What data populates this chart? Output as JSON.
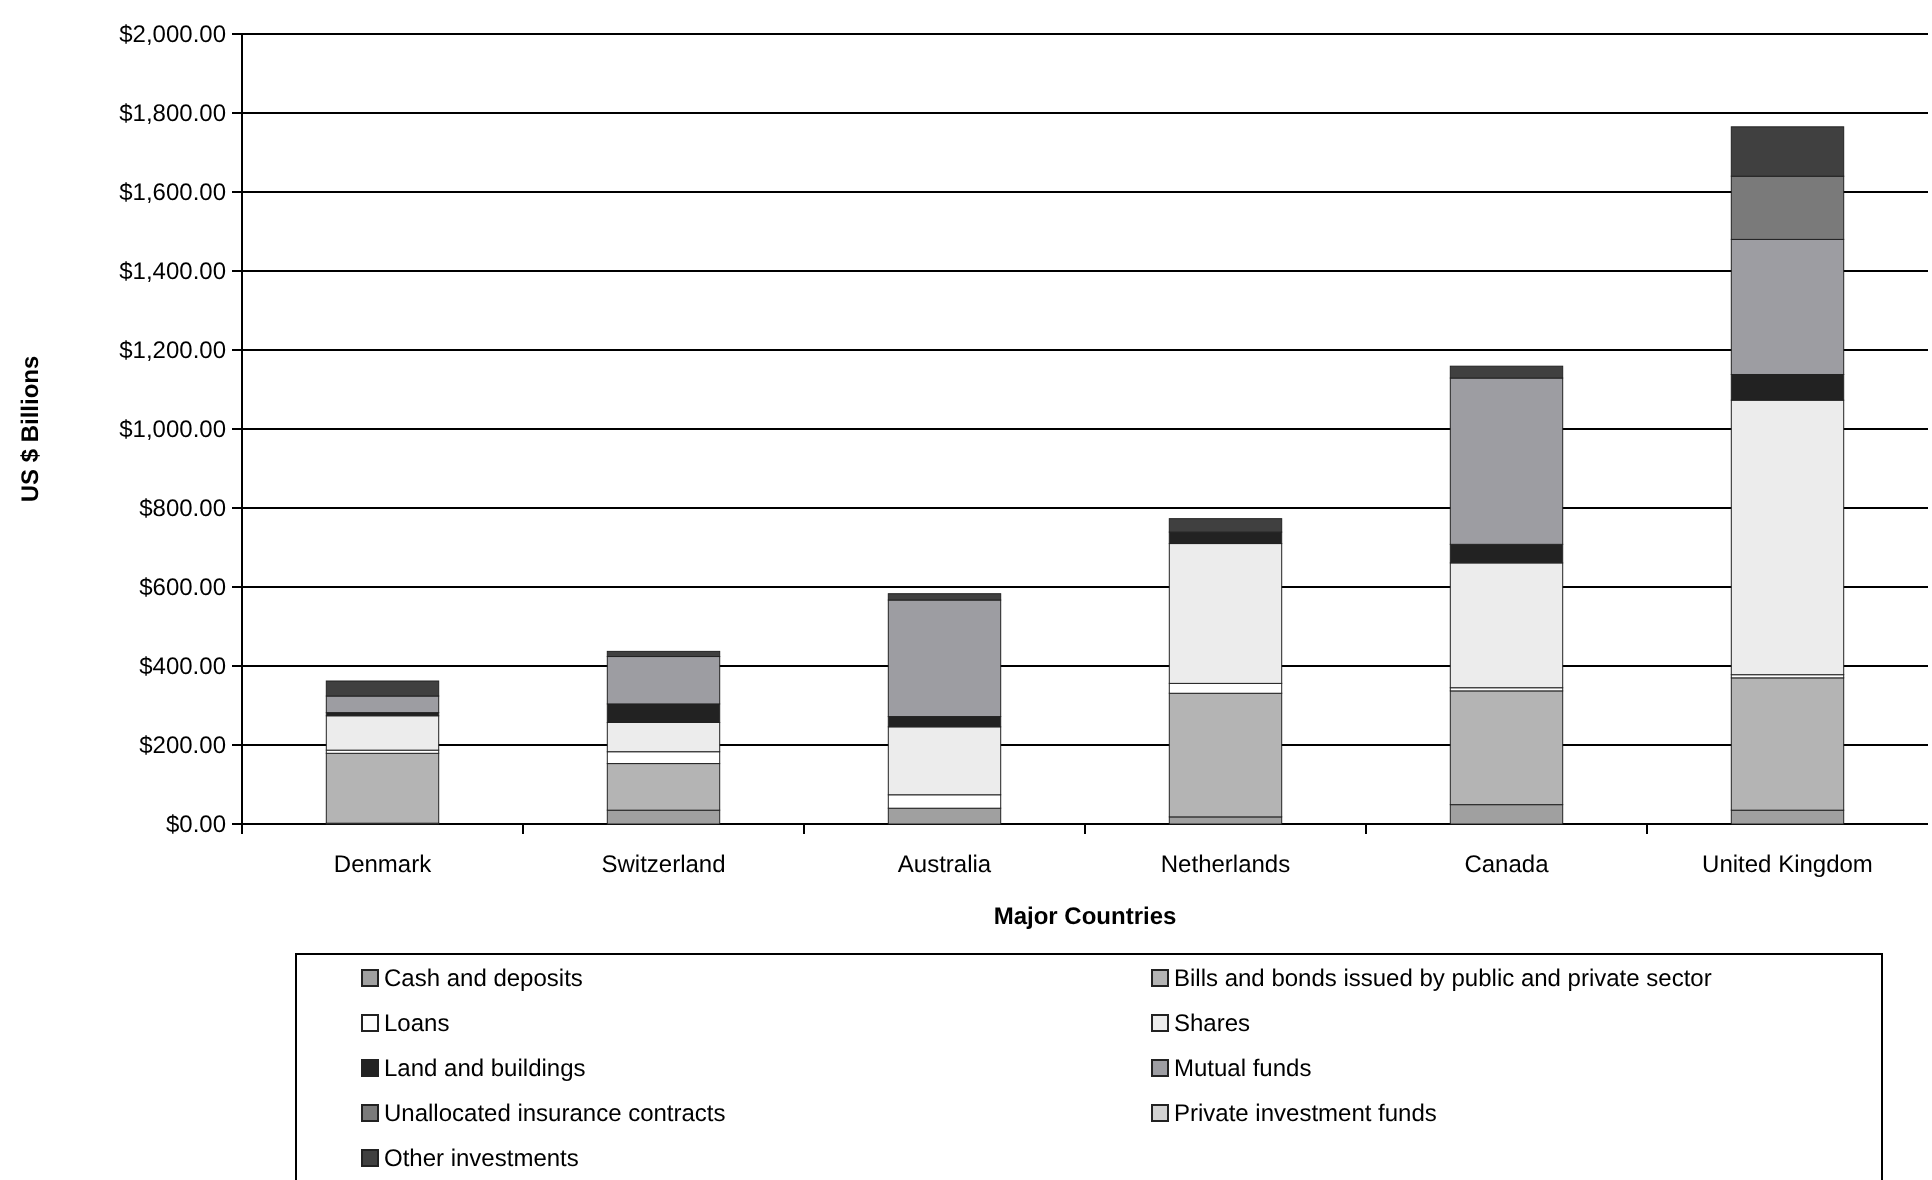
{
  "chart_data": {
    "type": "bar",
    "stacked": true,
    "xlabel": "Major Countries",
    "ylabel": "US $ Billions",
    "categories": [
      "Denmark",
      "Switzerland",
      "Australia",
      "Netherlands",
      "Canada",
      "United Kingdom"
    ],
    "series": [
      {
        "name": "Cash and deposits",
        "color": "#a0a0a0",
        "values": [
          2,
          35,
          40,
          18,
          49,
          35
        ]
      },
      {
        "name": "Bills and bonds issued by public and private sector",
        "color": "#b4b4b4",
        "values": [
          177,
          118,
          0,
          313,
          288,
          335
        ]
      },
      {
        "name": "Loans",
        "color": "#ffffff",
        "values": [
          8,
          30,
          34,
          25,
          8,
          8
        ]
      },
      {
        "name": "Shares",
        "color": "#ececec",
        "values": [
          87,
          74,
          172,
          354,
          316,
          695
        ]
      },
      {
        "name": "Land and buildings",
        "color": "#222222",
        "values": [
          8,
          47,
          26,
          29,
          47,
          65
        ]
      },
      {
        "name": "Mutual funds",
        "color": "#9d9da2",
        "values": [
          42,
          120,
          295,
          0,
          421,
          342
        ]
      },
      {
        "name": "Unallocated insurance contracts",
        "color": "#7a7a7a",
        "values": [
          0,
          0,
          0,
          0,
          0,
          160
        ]
      },
      {
        "name": "Private investment funds",
        "color": "#d2d2d2",
        "values": [
          0,
          0,
          0,
          0,
          0,
          0
        ]
      },
      {
        "name": "Other investments",
        "color": "#404040",
        "values": [
          38,
          13,
          16,
          34,
          30,
          125
        ]
      }
    ],
    "ylim": [
      0,
      2000
    ],
    "yticks": [
      {
        "value": 0,
        "label": "$0.00"
      },
      {
        "value": 200,
        "label": "$200.00"
      },
      {
        "value": 400,
        "label": "$400.00"
      },
      {
        "value": 600,
        "label": "$600.00"
      },
      {
        "value": 800,
        "label": "$800.00"
      },
      {
        "value": 1000,
        "label": "$1,000.00"
      },
      {
        "value": 1200,
        "label": "$1,200.00"
      },
      {
        "value": 1400,
        "label": "$1,400.00"
      },
      {
        "value": 1600,
        "label": "$1,600.00"
      },
      {
        "value": 1800,
        "label": "$1,800.00"
      },
      {
        "value": 2000,
        "label": "$2,000.00"
      }
    ],
    "grid": "y",
    "legend": "bottom"
  }
}
